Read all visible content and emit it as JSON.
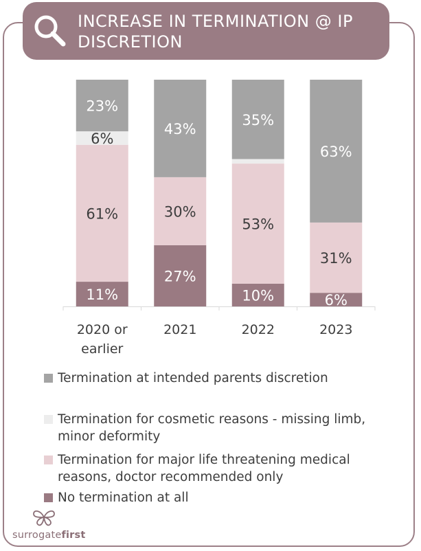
{
  "title": "INCREASE IN TERMINATION @ IP DISCRETION",
  "colors": {
    "frame": "#9c7f87",
    "banner": "#9a7c84",
    "parents_discretion": "#a4a4a4",
    "cosmetic": "#ededed",
    "medical": "#e8cfd3",
    "no_termination": "#9a7a82"
  },
  "icons": {
    "title": "magnifier-icon",
    "logo": "butterfly-icon"
  },
  "chart_data": {
    "type": "bar",
    "stacked": true,
    "normalized_percent": true,
    "categories": [
      "2020 or earlier",
      "2021",
      "2022",
      "2023"
    ],
    "series": [
      {
        "name": "No termination at all",
        "values": [
          11,
          27,
          10,
          6
        ],
        "labels": [
          "11%",
          "27%",
          "10%",
          "6%"
        ]
      },
      {
        "name": "Termination for major life threatening medical reasons, doctor recommended only",
        "values": [
          61,
          30,
          53,
          31
        ],
        "labels": [
          "61%",
          "30%",
          "53%",
          "31%"
        ]
      },
      {
        "name": "Termination for cosmetic reasons - missing limb, minor deformity",
        "values": [
          6,
          0,
          2,
          0
        ],
        "labels": [
          "6%",
          "",
          "",
          ""
        ]
      },
      {
        "name": "Termination at intended parents discretion",
        "values": [
          23,
          43,
          35,
          63
        ],
        "labels": [
          "23%",
          "43%",
          "35%",
          "63%"
        ]
      }
    ],
    "legend_position": "bottom",
    "grid": false,
    "ylim": [
      0,
      100
    ]
  },
  "legend": [
    {
      "label": "Termination at intended parents discretion",
      "color": "#a4a4a4"
    },
    {
      "label": "Termination for cosmetic reasons - missing limb, minor deformity",
      "color": "#ededed"
    },
    {
      "label": "Termination for major life threatening medical reasons, doctor recommended only",
      "color": "#e8cfd3"
    },
    {
      "label": "No termination at all",
      "color": "#9a7a82"
    }
  ],
  "logo": {
    "regular": "surrogate",
    "bold": "first"
  }
}
